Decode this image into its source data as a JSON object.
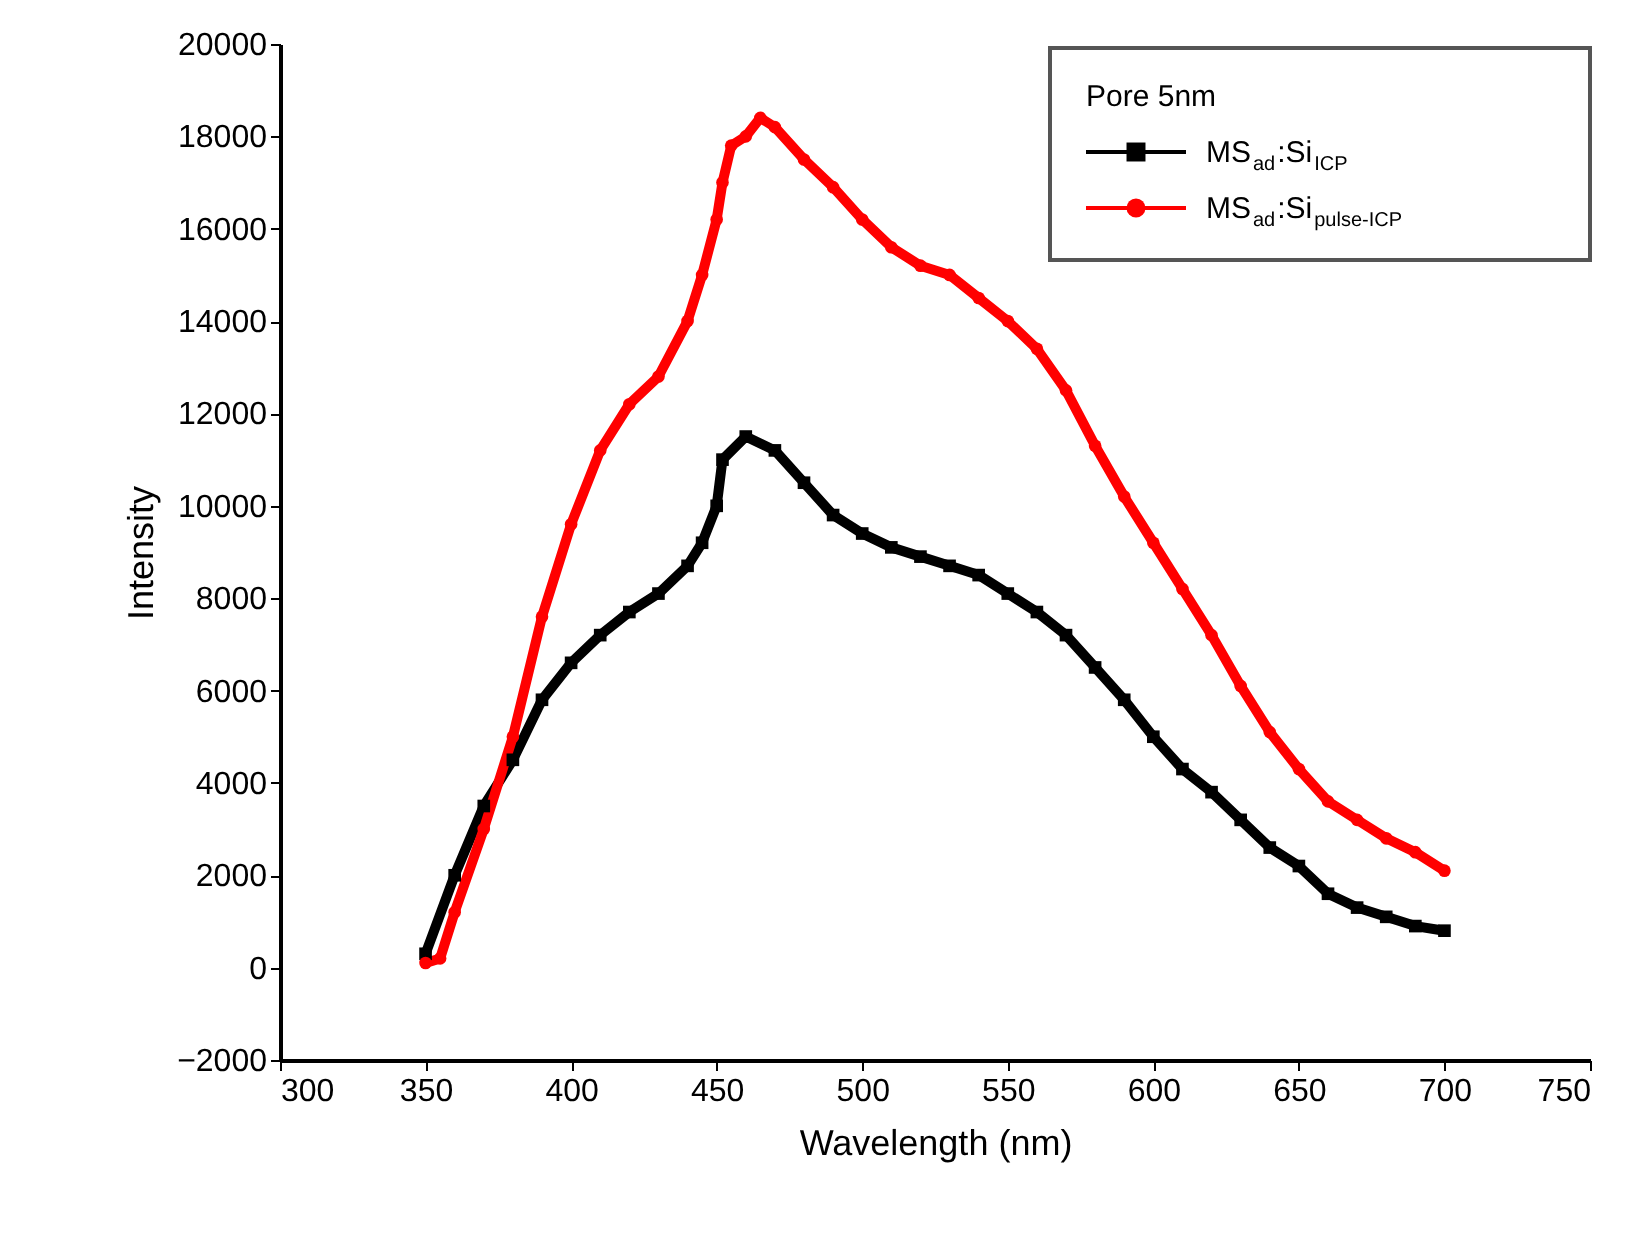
{
  "chart_data": {
    "type": "line",
    "xlabel": "Wavelength (nm)",
    "ylabel": "Intensity",
    "legend_title": "Pore 5nm",
    "legend": "top right",
    "grid": false,
    "xlim": [
      300,
      750
    ],
    "xticks": [
      300,
      350,
      400,
      450,
      500,
      550,
      600,
      650,
      700,
      750
    ],
    "ylim": [
      -2000,
      20000
    ],
    "yticks": [
      -2000,
      0,
      2000,
      4000,
      6000,
      8000,
      10000,
      12000,
      14000,
      16000,
      18000,
      20000
    ],
    "series": [
      {
        "name": "MS$_{ad}$:Si$_{ICP}$",
        "color": "#000000",
        "marker": "square",
        "x": [
          350,
          360,
          370,
          380,
          390,
          400,
          410,
          420,
          430,
          440,
          445,
          450,
          452,
          460,
          470,
          480,
          490,
          500,
          510,
          520,
          530,
          540,
          550,
          560,
          570,
          580,
          590,
          600,
          610,
          620,
          630,
          640,
          650,
          660,
          670,
          680,
          690,
          700
        ],
        "values": [
          300,
          2000,
          3500,
          4500,
          5800,
          6600,
          7200,
          7700,
          8100,
          8700,
          9200,
          10000,
          11000,
          11500,
          11200,
          10500,
          9800,
          9400,
          9100,
          8900,
          8700,
          8500,
          8100,
          7700,
          7200,
          6500,
          5800,
          5000,
          4300,
          3800,
          3200,
          2600,
          2200,
          1600,
          1300,
          1100,
          900,
          800
        ]
      },
      {
        "name": "MS$_{ad}$:Si$_{pulse-ICP}$",
        "color": "#ff0000",
        "marker": "circle",
        "x": [
          350,
          355,
          360,
          370,
          380,
          390,
          400,
          410,
          420,
          430,
          440,
          445,
          450,
          452,
          455,
          460,
          465,
          470,
          480,
          490,
          500,
          510,
          520,
          530,
          540,
          550,
          560,
          570,
          580,
          590,
          600,
          610,
          620,
          630,
          640,
          650,
          660,
          670,
          680,
          690,
          700
        ],
        "values": [
          100,
          200,
          1200,
          3000,
          5000,
          7600,
          9600,
          11200,
          12200,
          12800,
          14000,
          15000,
          16200,
          17000,
          17800,
          18000,
          18400,
          18200,
          17500,
          16900,
          16200,
          15600,
          15200,
          15000,
          14500,
          14000,
          13400,
          12500,
          11300,
          10200,
          9200,
          8200,
          7200,
          6100,
          5100,
          4300,
          3600,
          3200,
          2800,
          2500,
          2100
        ]
      }
    ]
  }
}
